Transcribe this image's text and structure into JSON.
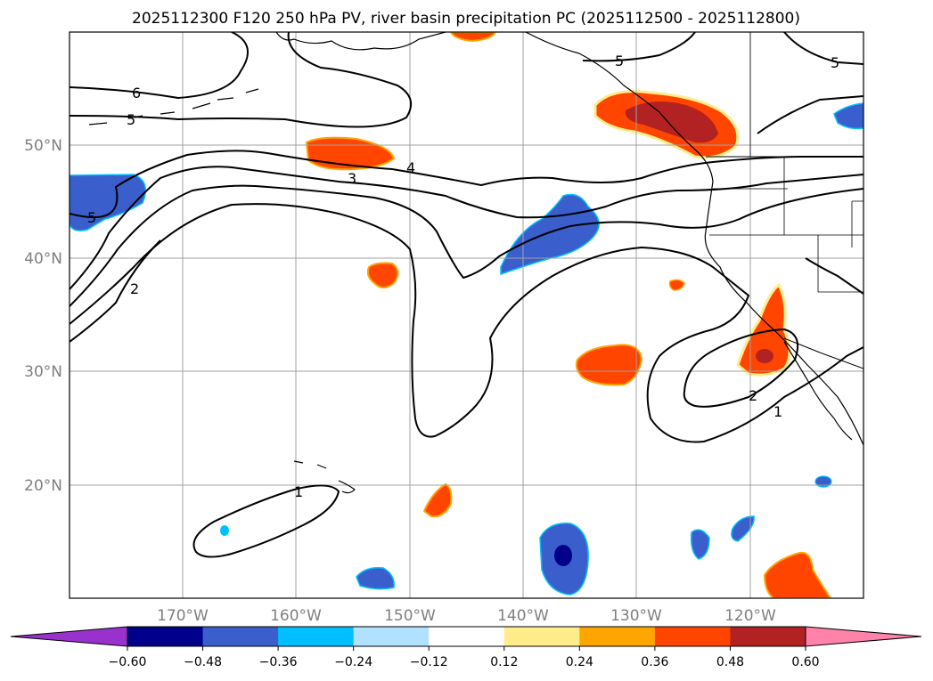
{
  "title": "2025112300 F120 250 hPa PV, river basin precipitation PC (2025112500 - 2025112800)",
  "map": {
    "lon_ticks": [
      "170°W",
      "160°W",
      "150°W",
      "140°W",
      "130°W",
      "120°W"
    ],
    "lat_ticks": [
      "50°N",
      "40°N",
      "30°N",
      "20°N"
    ],
    "lon_range": [
      -180,
      -110
    ],
    "lat_range": [
      10,
      60
    ],
    "gridlines": true
  },
  "contour_labels": [
    "6",
    "5",
    "5",
    "5",
    "5",
    "4",
    "3",
    "2",
    "2",
    "1",
    "1"
  ],
  "colorbar": {
    "orientation": "horizontal",
    "extend": "both",
    "tick_labels": [
      "−0.60",
      "−0.48",
      "−0.36",
      "−0.24",
      "−0.12",
      "0.12",
      "0.24",
      "0.36",
      "0.48",
      "0.60"
    ],
    "colors": [
      "#9932cc",
      "#00008b",
      "#3a5fcd",
      "#00bfff",
      "#b0e2ff",
      "#ffffff",
      "#ffec8b",
      "#ffa500",
      "#ff4500",
      "#b22222",
      "#ff82ab"
    ]
  },
  "colors": {
    "land_coast": "#000000",
    "neg_dark": "#00008b",
    "neg_mid": "#3a5fcd",
    "pos_mid": "#ff4500",
    "pos_dark": "#b22222",
    "pos_light": "#ffa500",
    "pos_edge": "#ffec8b",
    "neg_edge": "#00bfff"
  }
}
